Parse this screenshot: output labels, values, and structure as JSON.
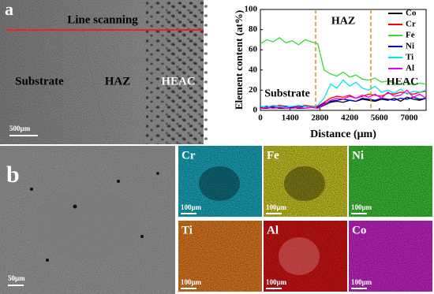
{
  "panels": {
    "a": {
      "label": "a",
      "caption": "Line scanning",
      "regions": [
        "Substrate",
        "HAZ",
        "HEAC"
      ],
      "scale": "500μm"
    },
    "b": {
      "label": "b",
      "scale": "50μm",
      "maps": [
        {
          "label": "Cr",
          "scale": "100μm",
          "color": "#1aa6bd"
        },
        {
          "label": "Fe",
          "scale": "100μm",
          "color": "#c9c526"
        },
        {
          "label": "Ni",
          "scale": "100μm",
          "color": "#3cbf35"
        },
        {
          "label": "Ti",
          "scale": "100μm",
          "color": "#e07a22"
        },
        {
          "label": "Al",
          "scale": "100μm",
          "color": "#d01414"
        },
        {
          "label": "Co",
          "scale": "100μm",
          "color": "#c326c3"
        }
      ]
    }
  },
  "chart_data": {
    "type": "line",
    "x_label": "Distance (μm)",
    "y_label": "Element content (at%)",
    "xlim": [
      0,
      7800
    ],
    "ylim": [
      0,
      100
    ],
    "xticks": [
      0,
      1400,
      2800,
      4200,
      5600,
      7000
    ],
    "yticks": [
      0,
      20,
      40,
      60,
      80,
      100
    ],
    "boundaries": [
      2600,
      5200
    ],
    "boundary_color": "#d4961e",
    "annotations": [
      "Substrate",
      "HAZ",
      "HEAC"
    ],
    "legend": "upper right",
    "x": [
      0,
      300,
      600,
      900,
      1200,
      1500,
      1800,
      2100,
      2400,
      2700,
      3000,
      3300,
      3600,
      3900,
      4200,
      4500,
      4800,
      5100,
      5400,
      5700,
      6000,
      6300,
      6600,
      6900,
      7200,
      7500,
      7800
    ],
    "series": [
      {
        "name": "Co",
        "color": "#000000",
        "values": [
          2,
          2,
          3,
          2,
          2,
          3,
          2,
          2,
          3,
          2,
          5,
          8,
          9,
          8,
          10,
          9,
          11,
          10,
          9,
          11,
          10,
          12,
          9,
          13,
          11,
          10,
          12
        ]
      },
      {
        "name": "Cr",
        "color": "#ff0000",
        "values": [
          4,
          3,
          4,
          5,
          4,
          3,
          4,
          5,
          4,
          4,
          8,
          12,
          14,
          13,
          15,
          12,
          14,
          16,
          15,
          14,
          17,
          16,
          18,
          17,
          16,
          18,
          19
        ]
      },
      {
        "name": "Fe",
        "color": "#33dd33",
        "values": [
          66,
          70,
          68,
          72,
          67,
          69,
          65,
          70,
          68,
          66,
          40,
          36,
          34,
          38,
          33,
          35,
          31,
          30,
          32,
          28,
          29,
          27,
          26,
          28,
          25,
          27,
          26
        ]
      },
      {
        "name": "Ni",
        "color": "#0000cc",
        "values": [
          3,
          4,
          3,
          3,
          4,
          3,
          3,
          4,
          3,
          3,
          7,
          9,
          10,
          11,
          10,
          9,
          12,
          11,
          10,
          12,
          11,
          10,
          12,
          11,
          13,
          11,
          12
        ]
      },
      {
        "name": "Ti",
        "color": "#00e5ee",
        "values": [
          4,
          3,
          5,
          4,
          3,
          4,
          5,
          4,
          3,
          5,
          12,
          26,
          22,
          30,
          24,
          28,
          22,
          20,
          24,
          18,
          20,
          17,
          21,
          16,
          19,
          18,
          20
        ]
      },
      {
        "name": "Al",
        "color": "#ee00ee",
        "values": [
          2,
          3,
          2,
          3,
          2,
          2,
          3,
          2,
          3,
          2,
          6,
          10,
          12,
          11,
          14,
          12,
          15,
          13,
          16,
          12,
          18,
          14,
          15,
          20,
          13,
          16,
          12
        ]
      }
    ]
  }
}
